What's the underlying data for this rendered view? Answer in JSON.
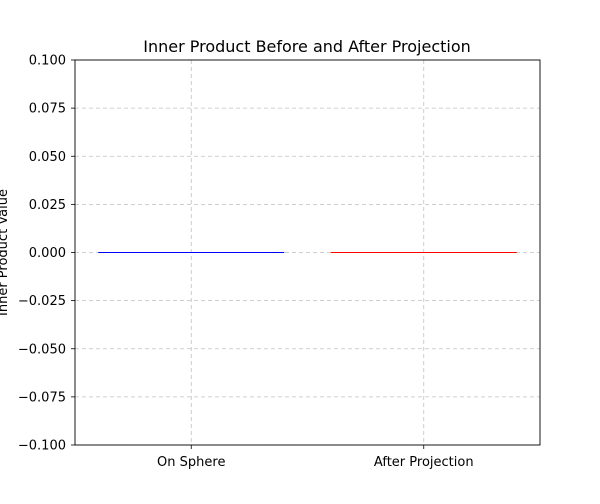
{
  "chart_data": {
    "type": "bar",
    "title": "Inner Product Before and After Projection",
    "xlabel": "",
    "ylabel": "Inner Product Value",
    "categories": [
      "On Sphere",
      "After Projection"
    ],
    "values": [
      0.0,
      0.0
    ],
    "bar_colors": [
      "#0000ff",
      "#ff0000"
    ],
    "ylim": [
      -0.1,
      0.1
    ],
    "yticks": [
      -0.1,
      -0.075,
      -0.05,
      -0.025,
      0.0,
      0.025,
      0.05,
      0.075,
      0.1
    ],
    "ytick_labels": [
      "−0.100",
      "−0.075",
      "−0.050",
      "−0.025",
      "0.000",
      "0.025",
      "0.050",
      "0.075",
      "0.100"
    ],
    "grid": true,
    "legend": "none"
  }
}
